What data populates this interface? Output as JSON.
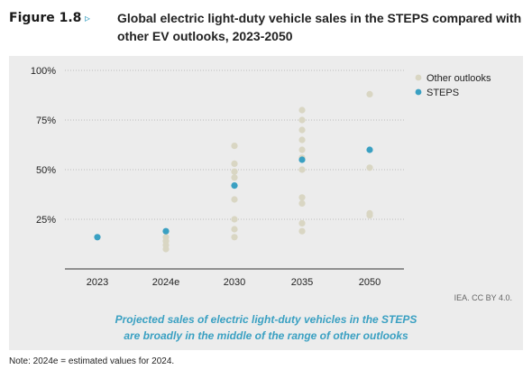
{
  "header": {
    "figure_label": "Figure 1.8",
    "arrow": "▹",
    "title": "Global electric light-duty vehicle sales in the STEPS compared with other EV outlooks, 2023-2050"
  },
  "source": "IEA. CC BY 4.0.",
  "caption": {
    "line1": "Projected sales of electric light-duty vehicles in the STEPS",
    "line2": "are broadly in the middle of the range of other outlooks"
  },
  "note": "Note: 2024e = estimated values for 2024.",
  "colors": {
    "other": "#d9d6c3",
    "steps": "#3aa0c2",
    "grid": "#bdbdbd",
    "axis": "#333333"
  },
  "chart_data": {
    "type": "scatter",
    "categories": [
      "2023",
      "2024e",
      "2030",
      "2035",
      "2050"
    ],
    "y_ticks": [
      "25%",
      "50%",
      "75%",
      "100%"
    ],
    "ylim": [
      0,
      100
    ],
    "grid": true,
    "legend_position": "top-right",
    "series": [
      {
        "name": "Other outlooks",
        "color": "#d9d6c3",
        "points": [
          {
            "x": "2024e",
            "y": 16
          },
          {
            "x": "2024e",
            "y": 14
          },
          {
            "x": "2024e",
            "y": 12
          },
          {
            "x": "2024e",
            "y": 10
          },
          {
            "x": "2030",
            "y": 62
          },
          {
            "x": "2030",
            "y": 53
          },
          {
            "x": "2030",
            "y": 49
          },
          {
            "x": "2030",
            "y": 46
          },
          {
            "x": "2030",
            "y": 35
          },
          {
            "x": "2030",
            "y": 25
          },
          {
            "x": "2030",
            "y": 20
          },
          {
            "x": "2030",
            "y": 16
          },
          {
            "x": "2035",
            "y": 80
          },
          {
            "x": "2035",
            "y": 75
          },
          {
            "x": "2035",
            "y": 70
          },
          {
            "x": "2035",
            "y": 65
          },
          {
            "x": "2035",
            "y": 60
          },
          {
            "x": "2035",
            "y": 56
          },
          {
            "x": "2035",
            "y": 50
          },
          {
            "x": "2035",
            "y": 36
          },
          {
            "x": "2035",
            "y": 33
          },
          {
            "x": "2035",
            "y": 23
          },
          {
            "x": "2035",
            "y": 19
          },
          {
            "x": "2050",
            "y": 88
          },
          {
            "x": "2050",
            "y": 51
          },
          {
            "x": "2050",
            "y": 28
          },
          {
            "x": "2050",
            "y": 27
          }
        ]
      },
      {
        "name": "STEPS",
        "color": "#3aa0c2",
        "points": [
          {
            "x": "2023",
            "y": 16
          },
          {
            "x": "2024e",
            "y": 19
          },
          {
            "x": "2030",
            "y": 42
          },
          {
            "x": "2035",
            "y": 55
          },
          {
            "x": "2050",
            "y": 60
          }
        ]
      }
    ]
  }
}
